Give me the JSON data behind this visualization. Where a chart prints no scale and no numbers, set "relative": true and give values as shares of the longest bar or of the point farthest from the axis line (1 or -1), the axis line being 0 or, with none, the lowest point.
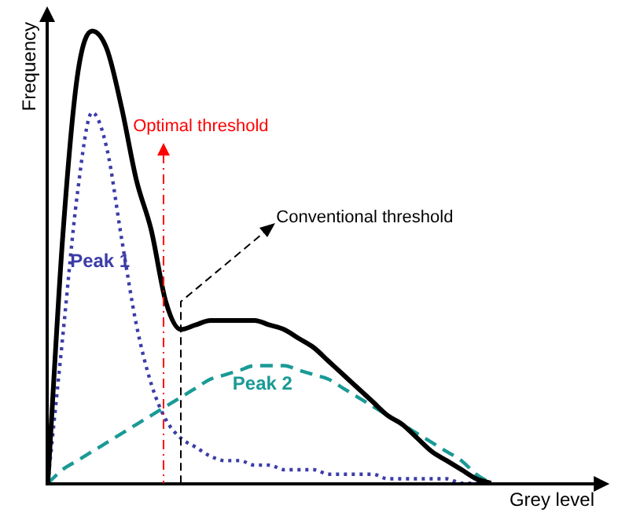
{
  "chart_data": {
    "type": "line",
    "relative": true,
    "xlabel": "Grey level",
    "ylabel": "Frequency",
    "categories": [
      null,
      null,
      null,
      null,
      null,
      null,
      null,
      null,
      null,
      null,
      null,
      null,
      null,
      null,
      null,
      null,
      null,
      null,
      null,
      null,
      null,
      null,
      null,
      null,
      null,
      null,
      null,
      null,
      null,
      null,
      null,
      null,
      null,
      null,
      null,
      null,
      null,
      null
    ],
    "series": [
      {
        "color": "#000000",
        "line_style": "solid",
        "values": [
          0,
          0.54,
          0.9,
          1.0,
          0.96,
          0.83,
          0.67,
          0.56,
          0.4,
          0.34,
          0.35,
          0.36,
          0.36,
          0.36,
          0.36,
          0.35,
          0.34,
          0.32,
          0.3,
          0.27,
          0.24,
          0.21,
          0.18,
          0.15,
          0.13,
          0.1,
          0.07,
          0.05,
          0.03,
          0.01,
          0,
          null,
          null,
          null,
          null,
          null,
          null,
          null
        ]
      },
      {
        "name": "Peak 1",
        "color": "#3c3ca8",
        "line_style": "dotted",
        "values": [
          0,
          0.32,
          0.64,
          0.82,
          0.74,
          0.54,
          0.35,
          0.22,
          0.14,
          0.1,
          0.08,
          0.06,
          0.05,
          0.05,
          0.04,
          0.04,
          0.03,
          0.03,
          0.03,
          0.02,
          0.02,
          0.02,
          0.02,
          0.01,
          0.01,
          0.01,
          0.01,
          0.01,
          0,
          0,
          0,
          null,
          null,
          null,
          null,
          null,
          null,
          null
        ]
      },
      {
        "name": "Peak 2",
        "color": "#1a9a96",
        "line_style": "dashed",
        "values": [
          0,
          0.03,
          0.05,
          0.07,
          0.09,
          0.11,
          0.13,
          0.15,
          0.17,
          0.19,
          0.21,
          0.23,
          0.24,
          0.25,
          0.26,
          0.26,
          0.26,
          0.25,
          0.24,
          0.23,
          0.21,
          0.19,
          0.17,
          0.15,
          0.13,
          0.11,
          0.09,
          0.07,
          0.05,
          0.02,
          0,
          null,
          null,
          null,
          null,
          null,
          null,
          null
        ]
      }
    ],
    "annotations": [
      "Optimal threshold",
      "Conventional threshold"
    ],
    "grid": false,
    "legend": false,
    "marker": "none"
  }
}
